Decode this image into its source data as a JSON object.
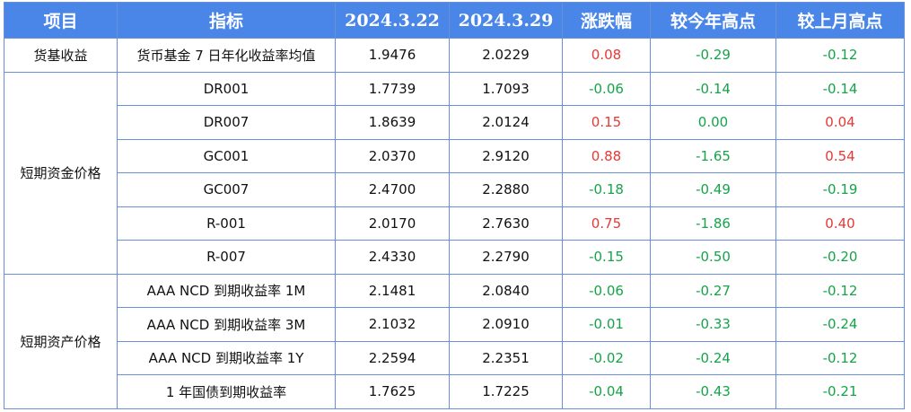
{
  "headers": [
    "项目",
    "指标",
    "2024.3.22",
    "2024.3.29",
    "涨跌幅",
    "较今年高点",
    "较上月高点"
  ],
  "groups": [
    {
      "category": "货基收益",
      "rows": [
        {
          "indicator": "货币基金 7 日年化收益率均值",
          "d1": "1.9476",
          "d2": "2.0229",
          "chg": "0.08",
          "ytd": "-0.29",
          "mom": "-0.12"
        }
      ]
    },
    {
      "category": "短期资金价格",
      "rows": [
        {
          "indicator": "DR001",
          "d1": "1.7739",
          "d2": "1.7093",
          "chg": "-0.06",
          "ytd": "-0.14",
          "mom": "-0.14"
        },
        {
          "indicator": "DR007",
          "d1": "1.8639",
          "d2": "2.0124",
          "chg": "0.15",
          "ytd": "0.00",
          "mom": "0.04"
        },
        {
          "indicator": "GC001",
          "d1": "2.0370",
          "d2": "2.9120",
          "chg": "0.88",
          "ytd": "-1.65",
          "mom": "0.54"
        },
        {
          "indicator": "GC007",
          "d1": "2.4700",
          "d2": "2.2880",
          "chg": "-0.18",
          "ytd": "-0.49",
          "mom": "-0.19"
        },
        {
          "indicator": "R-001",
          "d1": "2.0170",
          "d2": "2.7630",
          "chg": "0.75",
          "ytd": "-1.86",
          "mom": "0.40"
        },
        {
          "indicator": "R-007",
          "d1": "2.4330",
          "d2": "2.2790",
          "chg": "-0.15",
          "ytd": "-0.50",
          "mom": "-0.20"
        }
      ]
    },
    {
      "category": "短期资产价格",
      "rows": [
        {
          "indicator": "AAA NCD 到期收益率 1M",
          "d1": "2.1481",
          "d2": "2.0840",
          "chg": "-0.06",
          "ytd": "-0.27",
          "mom": "-0.12"
        },
        {
          "indicator": "AAA NCD 到期收益率 3M",
          "d1": "2.1032",
          "d2": "2.0910",
          "chg": "-0.01",
          "ytd": "-0.33",
          "mom": "-0.24"
        },
        {
          "indicator": "AAA NCD 到期收益率 1Y",
          "d1": "2.2594",
          "d2": "2.2351",
          "chg": "-0.02",
          "ytd": "-0.24",
          "mom": "-0.12"
        },
        {
          "indicator": "1 年国债到期收益率",
          "d1": "1.7625",
          "d2": "1.7225",
          "chg": "-0.04",
          "ytd": "-0.43",
          "mom": "-0.21"
        }
      ]
    }
  ],
  "colors": {
    "header_bg": "#4a86e8",
    "border": "#6b8fd6",
    "up": "#e53935",
    "down": "#16a34a"
  }
}
